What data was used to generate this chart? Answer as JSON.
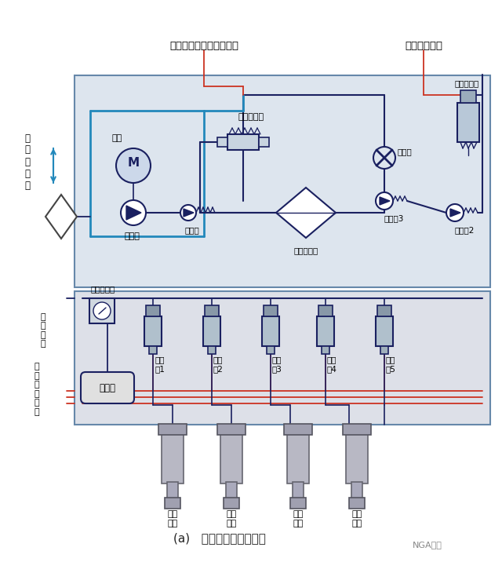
{
  "bg_color": "#ffffff",
  "upper_box_fc": "#dde5ee",
  "lower_box_fc": "#dde0e8",
  "box_ec": "#6688aa",
  "dark_blue": "#1a2060",
  "cyan_blue": "#2288bb",
  "red_line": "#cc3322",
  "gray_comp": "#b0bcc8",
  "title": "(a)   气动控制系统原理图",
  "watermark": "NGA集团",
  "top_label_left": "空压机延时控制信号输入",
  "top_label_right": "控制信号输入",
  "label_muffler": "二\n次\n消\n声\n器",
  "label_motor": "电机",
  "label_compressor": "空压机",
  "label_check1": "单向阀",
  "label_dryer": "空气干燥器",
  "label_pilot_valve": "气控排气阀",
  "label_throttle": "节流阀",
  "label_check3": "单向阀3",
  "label_check2": "单向阀2",
  "label_solenoid_exhaust": "电磁排气阀",
  "label_pressure_sensor": "压力传感器",
  "valve_labels": [
    "电磁\n阀1",
    "电磁\n阀2",
    "电磁\n阀3",
    "电磁\n阀4",
    "电磁\n阀5"
  ],
  "label_tank": "储气罐",
  "strut_labels": [
    "前左\n支柱",
    "前右\n支柱",
    "后左\n支柱",
    "后右\n支柱"
  ],
  "label_signal_out": "信\n号\n输\n出",
  "label_ctrl_in": "控\n制\n信\n号\n输\n入"
}
